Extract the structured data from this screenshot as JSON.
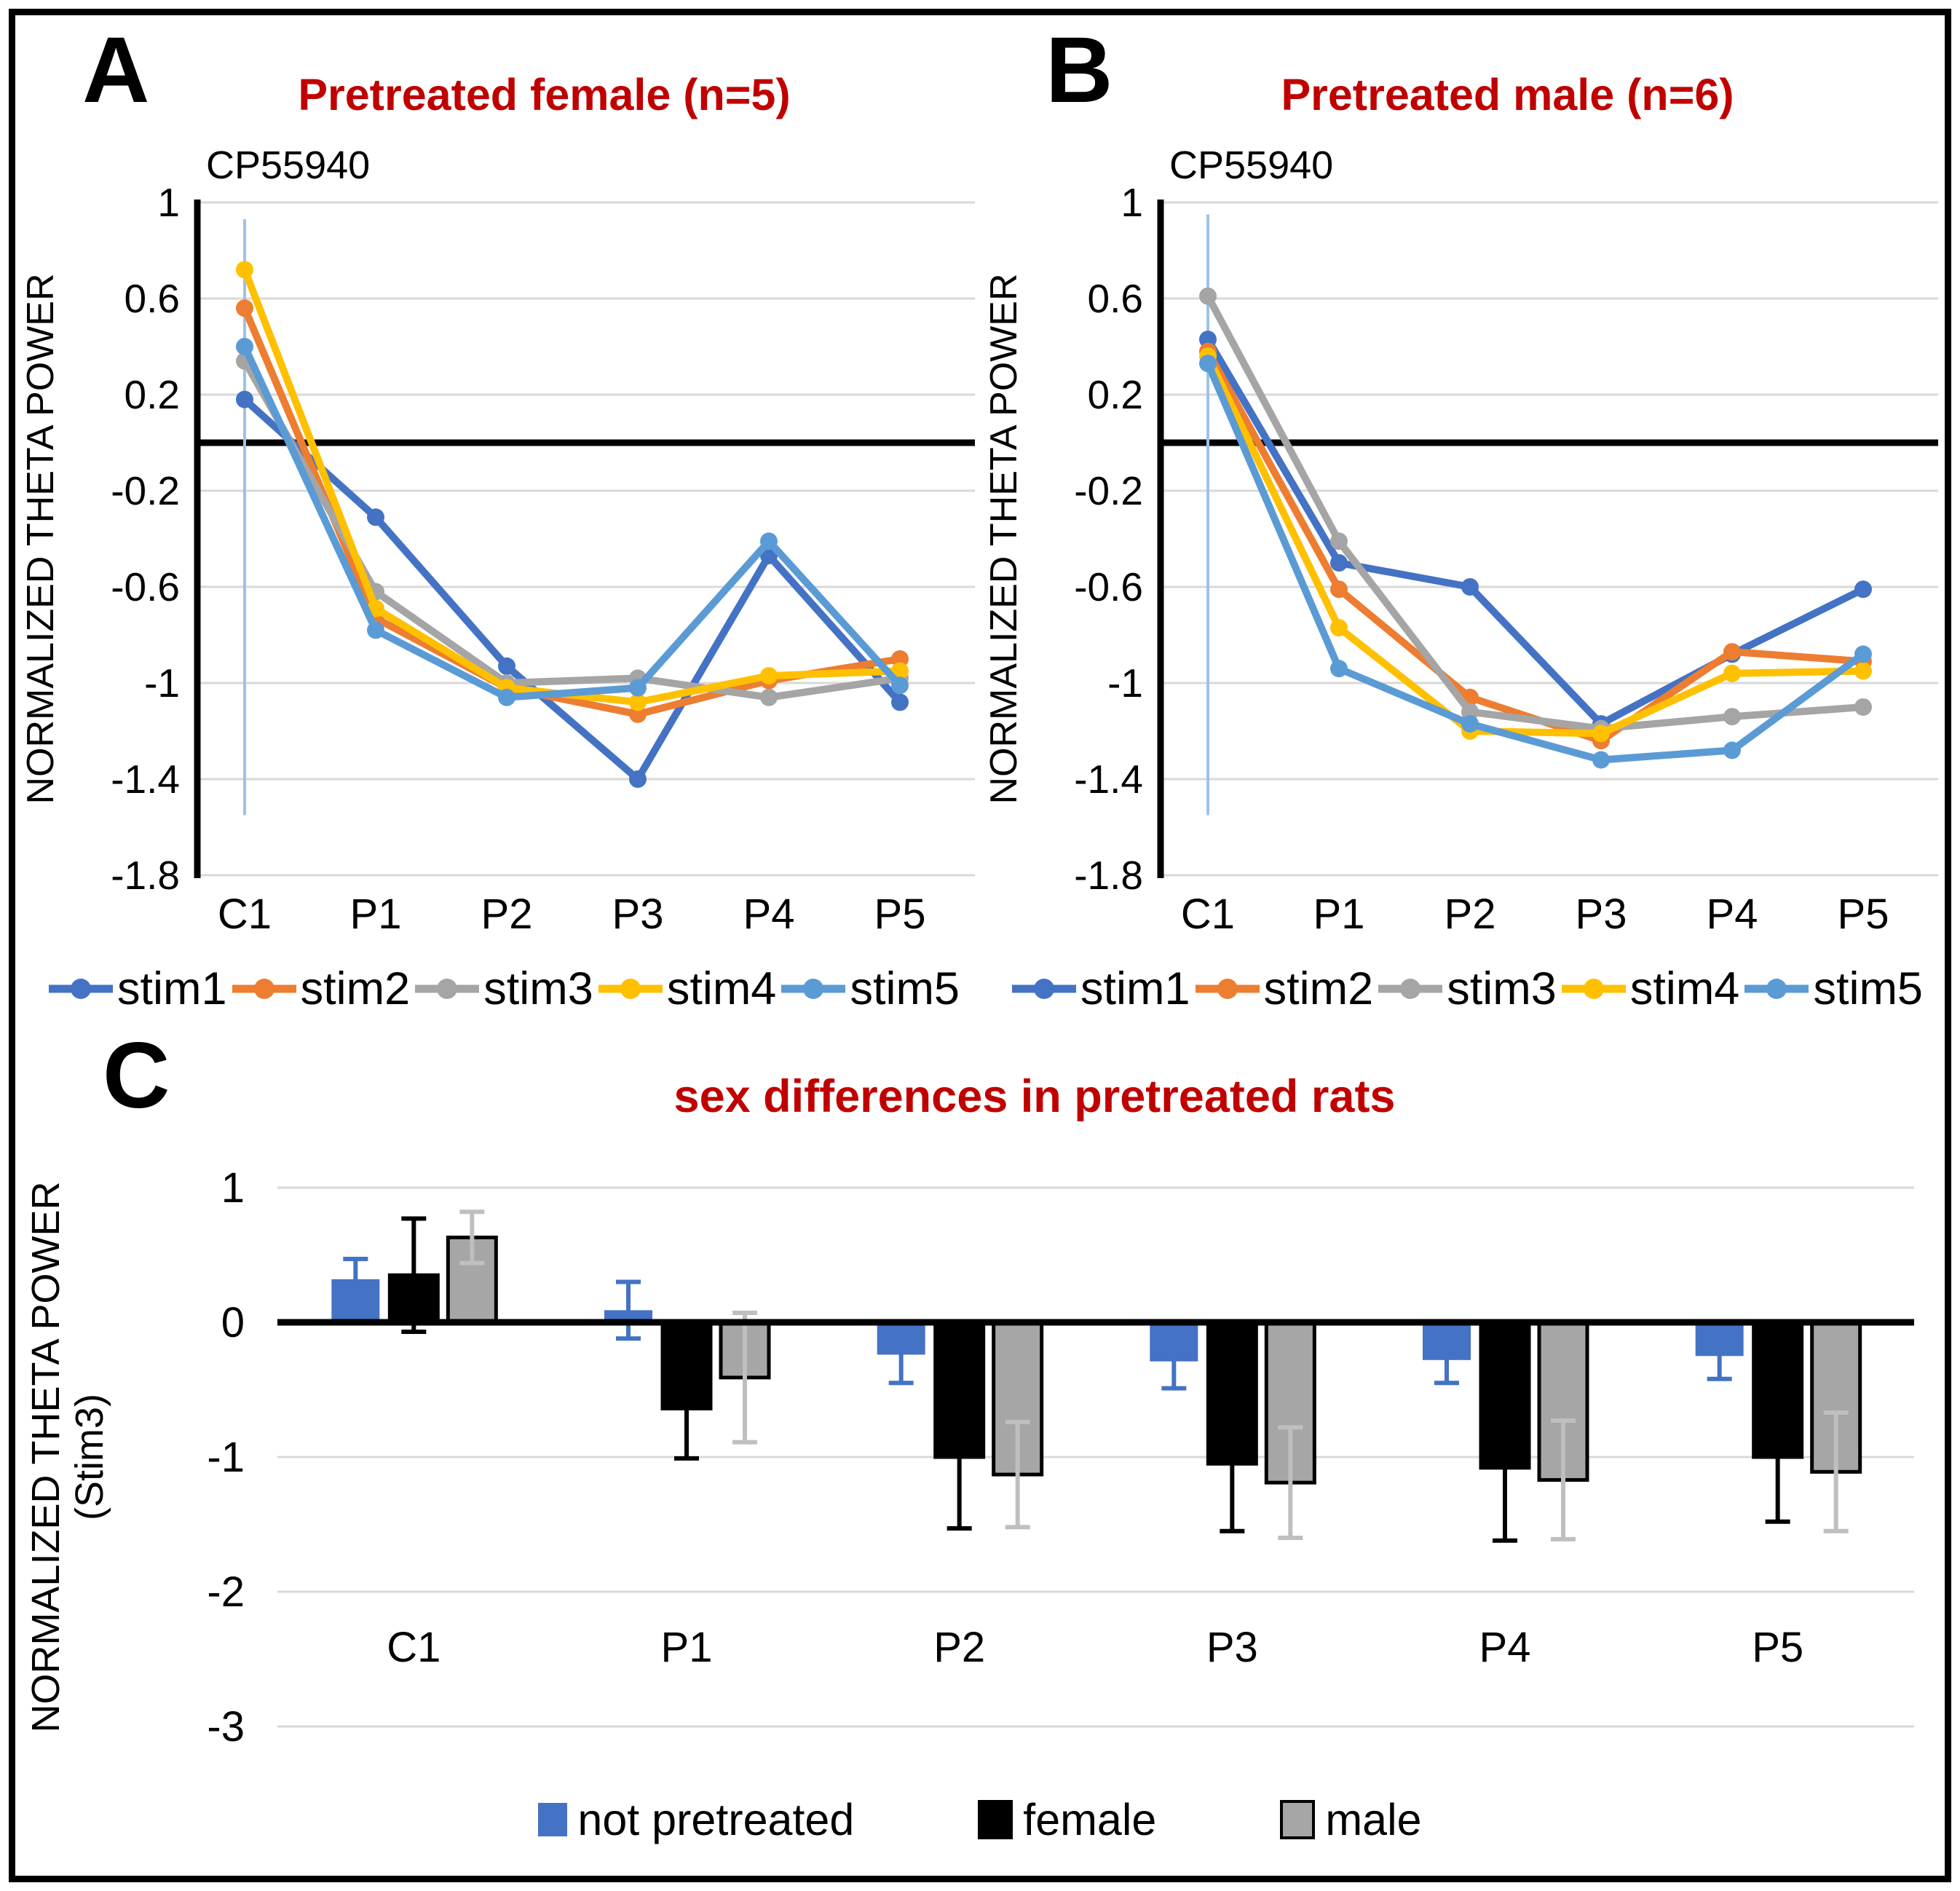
{
  "panels": [
    {
      "letter": "A",
      "title": "Pretreated female (n=5)",
      "annotation": "CP55940"
    },
    {
      "letter": "B",
      "title": "Pretreated male (n=6)",
      "annotation": "CP55940"
    },
    {
      "letter": "C",
      "title": "sex differences in pretreated rats"
    }
  ],
  "colors": {
    "title_red": "#C00000",
    "grid": "#D9D9D9",
    "axis": "#000000",
    "c1_marker": "#9DC3E6"
  },
  "chart_data": [
    {
      "type": "line",
      "title": "Pretreated female (n=5)",
      "annotation": "CP55940",
      "ylabel": "NORMALIZED THETA POWER",
      "categories": [
        "C1",
        "P1",
        "P2",
        "P3",
        "P4",
        "P5"
      ],
      "yticks": [
        1,
        0.6,
        0.2,
        -0.2,
        -0.6,
        -1,
        -1.4,
        -1.8
      ],
      "ytick_labels": [
        "1",
        "0.6",
        "0.2",
        "-0.2",
        "-0.6",
        "-1",
        "-1.4",
        "-1.8"
      ],
      "ylim": [
        -1.8,
        1
      ],
      "grid": true,
      "legend_position": "bottom",
      "c1_marker_line": {
        "from": 0.93,
        "to": -1.55
      },
      "series": [
        {
          "name": "stim1",
          "color": "#4472C4",
          "values": [
            0.18,
            -0.31,
            -0.93,
            -1.4,
            -0.47,
            -1.08
          ]
        },
        {
          "name": "stim2",
          "color": "#ED7D31",
          "values": [
            0.56,
            -0.73,
            -1.02,
            -1.13,
            -0.99,
            -0.9
          ]
        },
        {
          "name": "stim3",
          "color": "#A5A5A5",
          "values": [
            0.34,
            -0.62,
            -1.0,
            -0.98,
            -1.06,
            -0.98
          ]
        },
        {
          "name": "stim4",
          "color": "#FFC000",
          "values": [
            0.72,
            -0.69,
            -1.02,
            -1.08,
            -0.97,
            -0.95
          ]
        },
        {
          "name": "stim5",
          "color": "#5B9BD5",
          "values": [
            0.4,
            -0.78,
            -1.06,
            -1.02,
            -0.41,
            -1.01
          ]
        }
      ]
    },
    {
      "type": "line",
      "title": "Pretreated male (n=6)",
      "annotation": "CP55940",
      "ylabel": "NORMALIZED THETA POWER",
      "categories": [
        "C1",
        "P1",
        "P2",
        "P3",
        "P4",
        "P5"
      ],
      "yticks": [
        1,
        0.6,
        0.2,
        -0.2,
        -0.6,
        -1,
        -1.4,
        -1.8
      ],
      "ytick_labels": [
        "1",
        "0.6",
        "0.2",
        "-0.2",
        "-0.6",
        "-1",
        "-1.4",
        "-1.8"
      ],
      "ylim": [
        -1.8,
        1
      ],
      "grid": true,
      "legend_position": "bottom",
      "c1_marker_line": {
        "from": 0.95,
        "to": -1.55
      },
      "series": [
        {
          "name": "stim1",
          "color": "#4472C4",
          "values": [
            0.43,
            -0.5,
            -0.6,
            -1.17,
            -0.88,
            -0.61
          ]
        },
        {
          "name": "stim2",
          "color": "#ED7D31",
          "values": [
            0.38,
            -0.61,
            -1.06,
            -1.24,
            -0.87,
            -0.91
          ]
        },
        {
          "name": "stim3",
          "color": "#A5A5A5",
          "values": [
            0.61,
            -0.41,
            -1.12,
            -1.19,
            -1.14,
            -1.1
          ]
        },
        {
          "name": "stim4",
          "color": "#FFC000",
          "values": [
            0.36,
            -0.77,
            -1.2,
            -1.21,
            -0.96,
            -0.95
          ]
        },
        {
          "name": "stim5",
          "color": "#5B9BD5",
          "values": [
            0.33,
            -0.94,
            -1.17,
            -1.32,
            -1.28,
            -0.88
          ]
        }
      ]
    },
    {
      "type": "bar",
      "title": "sex differences in pretreated rats",
      "ylabel": "NORMALIZED THETA POWER",
      "ylabel2": "(Stim3)",
      "categories": [
        "C1",
        "P1",
        "P2",
        "P3",
        "P4",
        "P5"
      ],
      "yticks": [
        1,
        0,
        -1,
        -2,
        -3
      ],
      "ytick_labels": [
        "1",
        "0",
        "-1",
        "-2",
        "-3"
      ],
      "ylim": [
        -3,
        1
      ],
      "grid": true,
      "legend_position": "bottom",
      "series": [
        {
          "name": "not pretreated",
          "color": "#4472C4",
          "err_color": "#4472C4",
          "outline": "none",
          "values": [
            0.32,
            0.09,
            -0.24,
            -0.29,
            -0.28,
            -0.25
          ],
          "errors": [
            0.15,
            0.21,
            0.21,
            0.2,
            0.17,
            0.17
          ]
        },
        {
          "name": "female",
          "color": "#000000",
          "err_color": "#000000",
          "outline": "#000000",
          "values": [
            0.35,
            -0.64,
            -1.0,
            -1.05,
            -1.08,
            -1.0
          ],
          "errors": [
            0.42,
            0.37,
            0.53,
            0.5,
            0.54,
            0.48
          ]
        },
        {
          "name": "male",
          "color": "#A6A6A6",
          "err_color": "#BFBFBF",
          "outline": "#000000",
          "values": [
            0.63,
            -0.41,
            -1.13,
            -1.19,
            -1.17,
            -1.11
          ],
          "errors": [
            0.19,
            0.48,
            0.39,
            0.41,
            0.44,
            0.44
          ]
        }
      ]
    }
  ]
}
